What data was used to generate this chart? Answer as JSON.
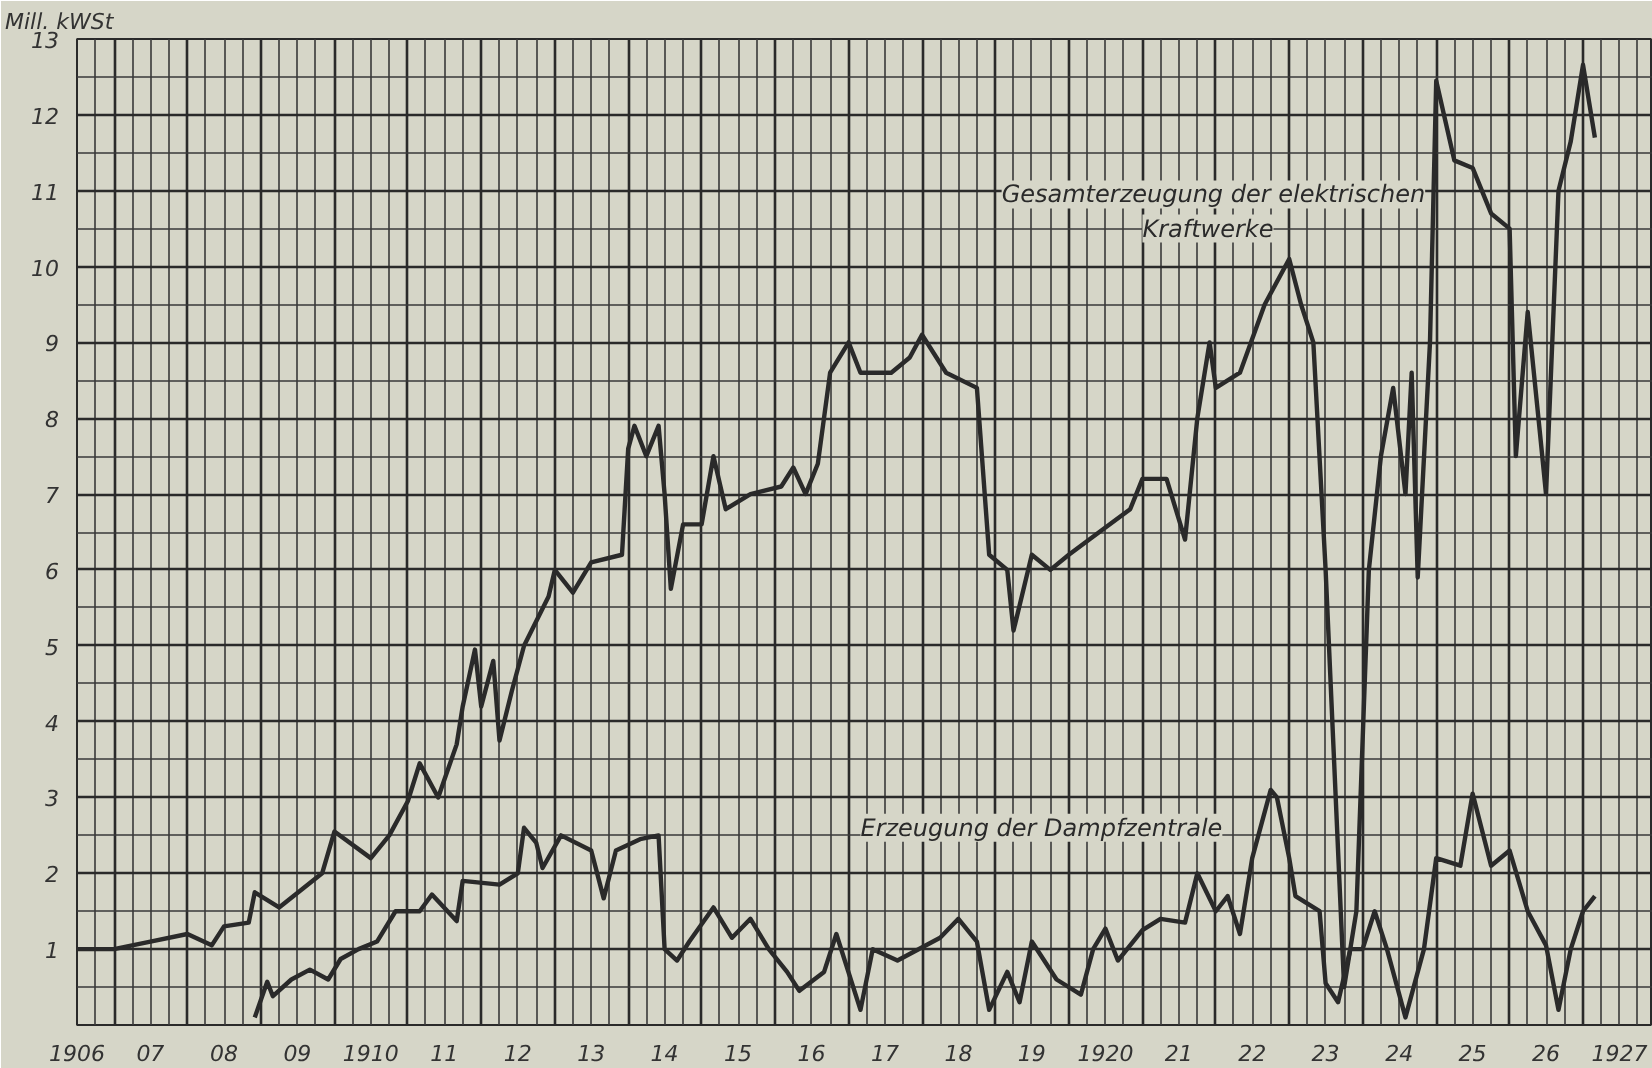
{
  "chart_data": {
    "type": "line",
    "ylabel": "Mill. kWSt",
    "xlim": [
      "1906-07-01",
      "1927-12-15"
    ],
    "ylim": [
      0,
      13
    ],
    "xticks": [
      {
        "value": "1906-07-01",
        "label": "1906"
      },
      {
        "value": "1907-07-01",
        "label": "07"
      },
      {
        "value": "1908-07-01",
        "label": "08"
      },
      {
        "value": "1909-07-01",
        "label": "09"
      },
      {
        "value": "1910-07-01",
        "label": "1910"
      },
      {
        "value": "1911-07-01",
        "label": "11"
      },
      {
        "value": "1912-07-01",
        "label": "12"
      },
      {
        "value": "1913-07-01",
        "label": "13"
      },
      {
        "value": "1914-07-01",
        "label": "14"
      },
      {
        "value": "1915-07-01",
        "label": "15"
      },
      {
        "value": "1916-07-01",
        "label": "16"
      },
      {
        "value": "1917-07-01",
        "label": "17"
      },
      {
        "value": "1918-07-01",
        "label": "18"
      },
      {
        "value": "1919-07-01",
        "label": "19"
      },
      {
        "value": "1920-07-01",
        "label": "1920"
      },
      {
        "value": "1921-07-01",
        "label": "21"
      },
      {
        "value": "1922-07-01",
        "label": "22"
      },
      {
        "value": "1923-07-01",
        "label": "23"
      },
      {
        "value": "1924-07-01",
        "label": "24"
      },
      {
        "value": "1925-07-01",
        "label": "25"
      },
      {
        "value": "1926-07-01",
        "label": "26"
      },
      {
        "value": "1927-07-01",
        "label": "1927"
      }
    ],
    "yticks": [
      1,
      2,
      3,
      4,
      5,
      6,
      7,
      8,
      9,
      10,
      11,
      12,
      13
    ],
    "grid": true,
    "series": [
      {
        "name": "Gesamterzeugung der elektrischen Kraftwerke",
        "color": "#2a2a2a",
        "x": [
          "1906-07",
          "1907-01",
          "1907-07",
          "1908-01",
          "1908-05",
          "1908-07",
          "1908-11",
          "1908-12",
          "1909-04",
          "1909-11",
          "1910-01",
          "1910-07",
          "1910-10",
          "1911-01",
          "1911-03",
          "1911-06",
          "1911-09",
          "1911-10",
          "1911-12",
          "1912-01",
          "1912-03",
          "1912-04",
          "1912-06",
          "1912-08",
          "1912-12",
          "1913-01",
          "1913-04",
          "1913-07",
          "1913-12",
          "1914-01",
          "1914-02",
          "1914-04",
          "1914-06",
          "1914-07",
          "1914-08",
          "1914-10",
          "1915-01",
          "1915-03",
          "1915-05",
          "1915-09",
          "1916-02",
          "1916-04",
          "1916-06",
          "1916-08",
          "1916-10",
          "1917-01",
          "1917-03",
          "1917-08",
          "1917-11",
          "1918-01",
          "1918-05",
          "1918-10",
          "1918-12",
          "1919-03",
          "1919-04",
          "1919-07",
          "1919-10",
          "1920-01",
          "1920-06",
          "1920-11",
          "1921-01",
          "1921-05",
          "1921-08",
          "1921-10",
          "1921-12",
          "1922-01",
          "1922-05",
          "1922-09",
          "1923-01",
          "1923-03",
          "1923-05",
          "1923-07",
          "1923-10",
          "1923-12",
          "1924-02",
          "1924-04",
          "1924-06",
          "1924-08",
          "1924-09",
          "1924-10",
          "1924-12",
          "1925-01",
          "1925-04",
          "1925-07",
          "1925-10",
          "1926-01",
          "1926-02",
          "1926-04",
          "1926-06",
          "1926-07",
          "1926-09",
          "1926-11",
          "1927-01",
          "1927-03"
        ],
        "values": [
          1.0,
          1.0,
          1.1,
          1.2,
          1.05,
          1.3,
          1.35,
          1.75,
          1.55,
          2.0,
          2.55,
          2.2,
          2.5,
          2.95,
          3.45,
          3.0,
          3.7,
          4.2,
          4.95,
          4.2,
          4.8,
          3.75,
          4.4,
          5.0,
          5.65,
          6.0,
          5.7,
          6.1,
          6.2,
          7.6,
          7.9,
          7.5,
          7.9,
          7.0,
          5.75,
          6.6,
          6.6,
          7.5,
          6.8,
          7.0,
          7.1,
          7.35,
          7.0,
          7.4,
          8.6,
          9.0,
          8.6,
          8.6,
          8.8,
          9.1,
          8.6,
          8.4,
          6.2,
          6.0,
          5.2,
          6.2,
          6.0,
          6.2,
          6.5,
          6.8,
          7.2,
          7.2,
          6.4,
          8.0,
          9.0,
          8.4,
          8.6,
          9.5,
          10.1,
          9.5,
          9.0,
          6.0,
          0.5,
          1.5,
          6.0,
          7.5,
          8.4,
          7.0,
          8.6,
          5.9,
          9.0,
          12.45,
          11.4,
          11.3,
          10.7,
          10.5,
          7.5,
          9.4,
          7.8,
          7.0,
          11.0,
          11.65,
          12.66,
          11.7
        ]
      },
      {
        "name": "Erzeugung der Dampfzentrale",
        "color": "#2a2a2a",
        "x": [
          "1908-12",
          "1909-02",
          "1909-03",
          "1909-06",
          "1909-09",
          "1909-12",
          "1910-02",
          "1910-05",
          "1910-08",
          "1910-11",
          "1911-03",
          "1911-05",
          "1911-09",
          "1911-10",
          "1912-04",
          "1912-07",
          "1912-08",
          "1912-10",
          "1912-11",
          "1913-02",
          "1913-07",
          "1913-09",
          "1913-11",
          "1914-03",
          "1914-06",
          "1914-07",
          "1914-09",
          "1914-11",
          "1915-03",
          "1915-06",
          "1915-09",
          "1915-12",
          "1916-03",
          "1916-05",
          "1916-09",
          "1916-11",
          "1917-03",
          "1917-05",
          "1917-09",
          "1918-04",
          "1918-07",
          "1918-10",
          "1918-12",
          "1919-03",
          "1919-05",
          "1919-07",
          "1919-11",
          "1920-03",
          "1920-05",
          "1920-07",
          "1920-09",
          "1921-01",
          "1921-04",
          "1921-08",
          "1921-10",
          "1922-01",
          "1922-03",
          "1922-05",
          "1922-07",
          "1922-10",
          "1922-11",
          "1923-01",
          "1923-02",
          "1923-06",
          "1923-07",
          "1923-09",
          "1923-11",
          "1924-01",
          "1924-03",
          "1924-05",
          "1924-08",
          "1924-11",
          "1925-01",
          "1925-05",
          "1925-07",
          "1925-10",
          "1926-01",
          "1926-04",
          "1926-07",
          "1926-09",
          "1926-11",
          "1927-01",
          "1927-03"
        ],
        "values": [
          0.1,
          0.57,
          0.38,
          0.6,
          0.73,
          0.6,
          0.87,
          1.0,
          1.1,
          1.5,
          1.5,
          1.72,
          1.37,
          1.9,
          1.85,
          2.0,
          2.6,
          2.4,
          2.07,
          2.5,
          2.3,
          1.67,
          2.3,
          2.45,
          2.5,
          1.0,
          0.85,
          1.1,
          1.55,
          1.15,
          1.4,
          1.0,
          0.7,
          0.45,
          0.7,
          1.2,
          0.2,
          1.0,
          0.85,
          1.15,
          1.4,
          1.1,
          0.2,
          0.7,
          0.3,
          1.1,
          0.6,
          0.4,
          1.0,
          1.27,
          0.85,
          1.25,
          1.4,
          1.35,
          2.0,
          1.5,
          1.7,
          1.2,
          2.2,
          3.1,
          3.0,
          2.2,
          1.7,
          1.5,
          0.55,
          0.3,
          1.0,
          1.0,
          1.5,
          1.0,
          0.1,
          1.0,
          2.2,
          2.1,
          3.05,
          2.1,
          2.3,
          1.5,
          1.05,
          0.2,
          1.0,
          1.5,
          1.7
        ]
      }
    ]
  }
}
